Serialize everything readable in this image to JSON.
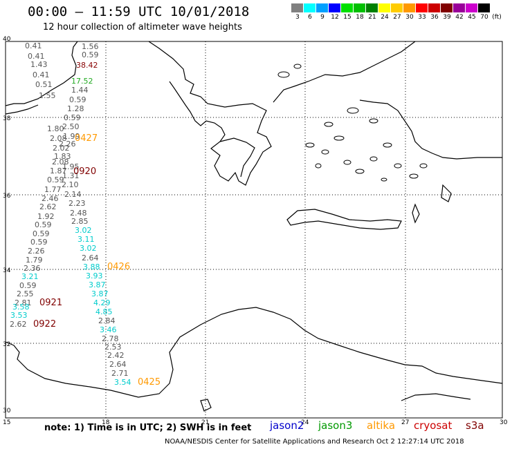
{
  "header": {
    "title": "00:00 – 11:59 UTC 10/01/2018",
    "subtitle": "12 hour collection of altimeter wave heights"
  },
  "color_scale": {
    "colors": [
      "#808080",
      "#00ffff",
      "#00a0ff",
      "#0000ff",
      "#00e000",
      "#00c000",
      "#008000",
      "#ffff00",
      "#ffcc00",
      "#ff9900",
      "#ff0000",
      "#cc0000",
      "#800000",
      "#990099",
      "#cc00cc",
      "#000000"
    ],
    "labels": [
      "3",
      "6",
      "9",
      "12",
      "15",
      "18",
      "21",
      "24",
      "27",
      "30",
      "33",
      "36",
      "39",
      "42",
      "45",
      "70",
      "(ft)"
    ]
  },
  "axes": {
    "lon_ticks": [
      "15",
      "18",
      "21",
      "24",
      "27",
      "30"
    ],
    "lat_ticks": [
      "40",
      "38",
      "36",
      "34",
      "32",
      "30"
    ]
  },
  "footer": {
    "note": "note:  1) Time is in UTC;  2) SWH is in feet",
    "satellites": [
      {
        "name": "jason2",
        "color": "#0000cc"
      },
      {
        "name": "jason3",
        "color": "#009900"
      },
      {
        "name": "altika",
        "color": "#ff9900"
      },
      {
        "name": "cryosat",
        "color": "#cc0000"
      },
      {
        "name": "s3a",
        "color": "#800000"
      }
    ],
    "credit": "NOAA/NESDIS Center for Satellite Applications and Research     Oct  2 12:27:14 UTC 2018"
  },
  "observations": {
    "gray": [
      "0.41",
      "0.41",
      "1.43",
      "0.41",
      "0.51",
      "1.55",
      "1.56",
      "0.59",
      "1.44",
      "0.59",
      "1.28",
      "0.59",
      "1.80",
      "2.50",
      "2.08",
      "1.99",
      "2.26",
      "2.02",
      "1.83",
      "2.08",
      "1.95",
      "1.87",
      "1.31",
      "0.59",
      "2.10",
      "1.77",
      "2.14",
      "2.46",
      "2.23",
      "2.62",
      "2.48",
      "1.92",
      "2.85",
      "0.59",
      "0.59",
      "0.59",
      "2.26",
      "1.79",
      "2.64",
      "2.36",
      "0.59",
      "2.55",
      "2.81",
      "2.62",
      "2.84",
      "2.78",
      "2.53",
      "2.42",
      "2.64",
      "2.71"
    ],
    "cyan": [
      "3.02",
      "3.11",
      "3.02",
      "3.88",
      "3.21",
      "3.93",
      "3.87",
      "3.87",
      "4.29",
      "3.58",
      "4.85",
      "3.53",
      "3.46",
      "3.54"
    ],
    "red": [
      "38.42"
    ],
    "green": [
      "17.52"
    ],
    "time_labels_orange": [
      "0427",
      "0426",
      "0425"
    ],
    "time_labels_darkred": [
      "0920",
      "0921",
      "0922"
    ]
  }
}
